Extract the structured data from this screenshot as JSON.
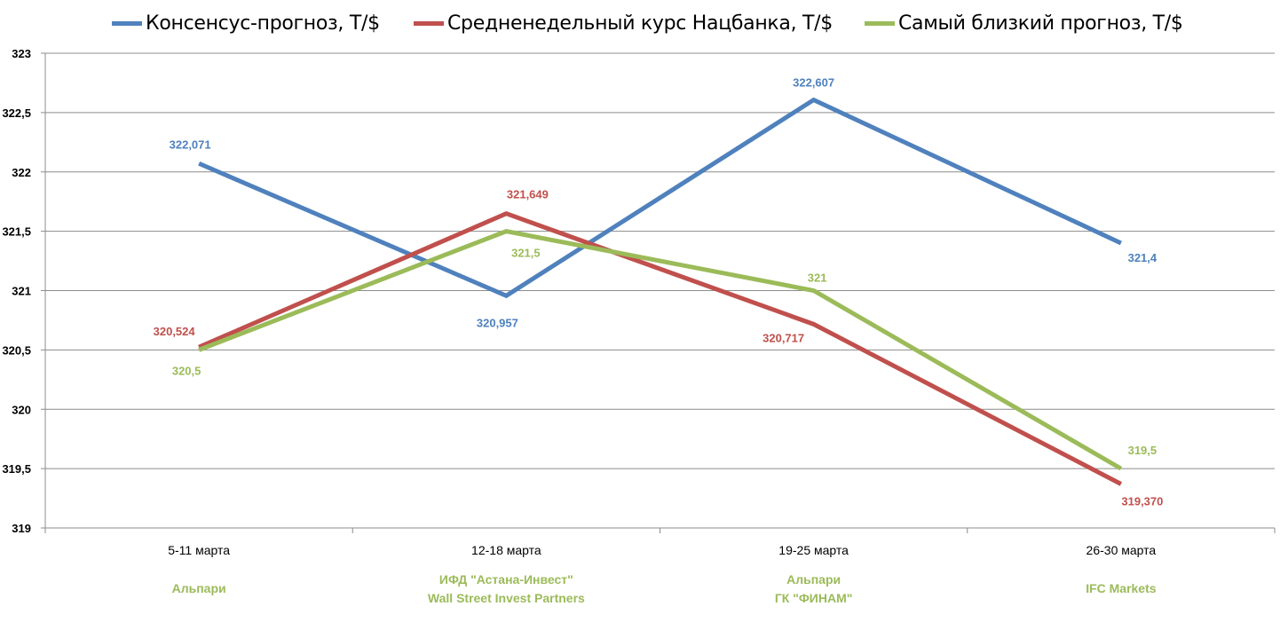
{
  "legend": [
    {
      "label": "Консенсус-прогноз, Т/$",
      "color": "#4F81BD"
    },
    {
      "label": "Средненедельный курс Нацбанка, Т/$",
      "color": "#C0504D"
    },
    {
      "label": "Самый близкий прогноз, Т/$",
      "color": "#9BBB59"
    }
  ],
  "forecasters": [
    [
      "Альпари"
    ],
    [
      "ИФД \"Астана-Инвест\"",
      "Wall Street Invest Partners"
    ],
    [
      "Альпари",
      "ГК \"ФИНАМ\""
    ],
    [
      "IFC Markets"
    ]
  ],
  "chart_data": {
    "type": "line",
    "categories": [
      "5-11 марта",
      "12-18 марта",
      "19-25 марта",
      "26-30 марта"
    ],
    "ylim": [
      319,
      323
    ],
    "yticks": [
      319,
      319.5,
      320,
      320.5,
      321,
      321.5,
      322,
      322.5,
      323
    ],
    "ytick_labels": [
      "319",
      "319,5",
      "320",
      "320,5",
      "321",
      "321,5",
      "322",
      "322,5",
      "323"
    ],
    "grid": true,
    "legend_position": "top",
    "series": [
      {
        "name": "Консенсус-прогноз, Т/$",
        "color": "#4F81BD",
        "values": [
          322.071,
          320.957,
          322.607,
          321.4
        ],
        "labels": [
          "322,071",
          "320,957",
          "322,607",
          "321,4"
        ]
      },
      {
        "name": "Средненедельный курс Нацбанка, Т/$",
        "color": "#C0504D",
        "values": [
          320.524,
          321.649,
          320.717,
          319.37
        ],
        "labels": [
          "320,524",
          "321,649",
          "320,717",
          "319,370"
        ]
      },
      {
        "name": "Самый близкий прогноз, Т/$",
        "color": "#9BBB59",
        "values": [
          320.5,
          321.5,
          321,
          319.5
        ],
        "labels": [
          "320,5",
          "321,5",
          "321",
          "319,5"
        ]
      }
    ]
  }
}
